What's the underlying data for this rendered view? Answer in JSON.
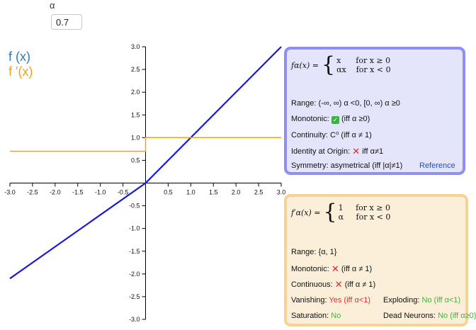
{
  "param": {
    "label": "α",
    "value": "0.7"
  },
  "legend": {
    "f": "f (x)",
    "df": "f '(x)"
  },
  "colors": {
    "f": "#1a1ad6",
    "df": "#f4a022",
    "axis": "#000000",
    "box_f_border": "#8d8ef6",
    "box_df_border": "#f8d195"
  },
  "axes": {
    "x_ticks": [
      "-3.0",
      "-2.5",
      "-2.0",
      "-1.5",
      "-1.0",
      "-0.5",
      "0.5",
      "1.0",
      "1.5",
      "2.0",
      "2.5",
      "3.0"
    ],
    "y_ticks": [
      "3.0",
      "2.5",
      "2.0",
      "1.5",
      "1.0",
      "0.5",
      "-0.5",
      "-1.0",
      "-1.5",
      "-2.0",
      "-2.5",
      "-3.0"
    ]
  },
  "chart_data": {
    "type": "line",
    "xlim": [
      -3,
      3
    ],
    "ylim": [
      -3,
      3
    ],
    "series": [
      {
        "name": "f (x)",
        "x": [
          -3,
          0,
          3
        ],
        "y": [
          -2.1,
          0,
          3
        ]
      },
      {
        "name": "f '(x)",
        "x": [
          -3,
          0,
          0,
          3
        ],
        "y": [
          0.7,
          0.7,
          1,
          1
        ]
      }
    ]
  },
  "panel_f": {
    "lhs": "fα(x) =",
    "case1": "x      for x ≥ 0",
    "case2": "αx    for x < 0",
    "range": "Range: (-∞, ∞) α <0, [0, ∞) α ≥0",
    "monotonic_label": "Monotonic:",
    "monotonic_note": "(iff α ≥0)",
    "continuity": "Continuity: C⁰ (iff α ≠ 1)",
    "identity_label": "Identity at Origin:",
    "identity_note": "iff α≠1",
    "symmetry": "Symmetry: asymetrical (iff |α|≠1)",
    "reference": "Reference"
  },
  "panel_df": {
    "lhs": "f′α(x) =",
    "case1": "1     for x ≥ 0",
    "case2": "α     for x < 0",
    "range": "Range: {α, 1}",
    "monotonic_label": "Monotonic:",
    "monotonic_note": "(iff α ≠ 1)",
    "continuous_label": "Continuous:",
    "continuous_note": "(iff α ≠ 1)",
    "vanishing_label": "Vanishing:",
    "vanishing_value": "Yes (iff α<1)",
    "exploding_label": "Exploding:",
    "exploding_value": "No (iff α<1)",
    "saturation_label": "Saturation:",
    "saturation_value": "No",
    "dead_label": "Dead Neurons:",
    "dead_value": "No (iff α≥0)"
  }
}
